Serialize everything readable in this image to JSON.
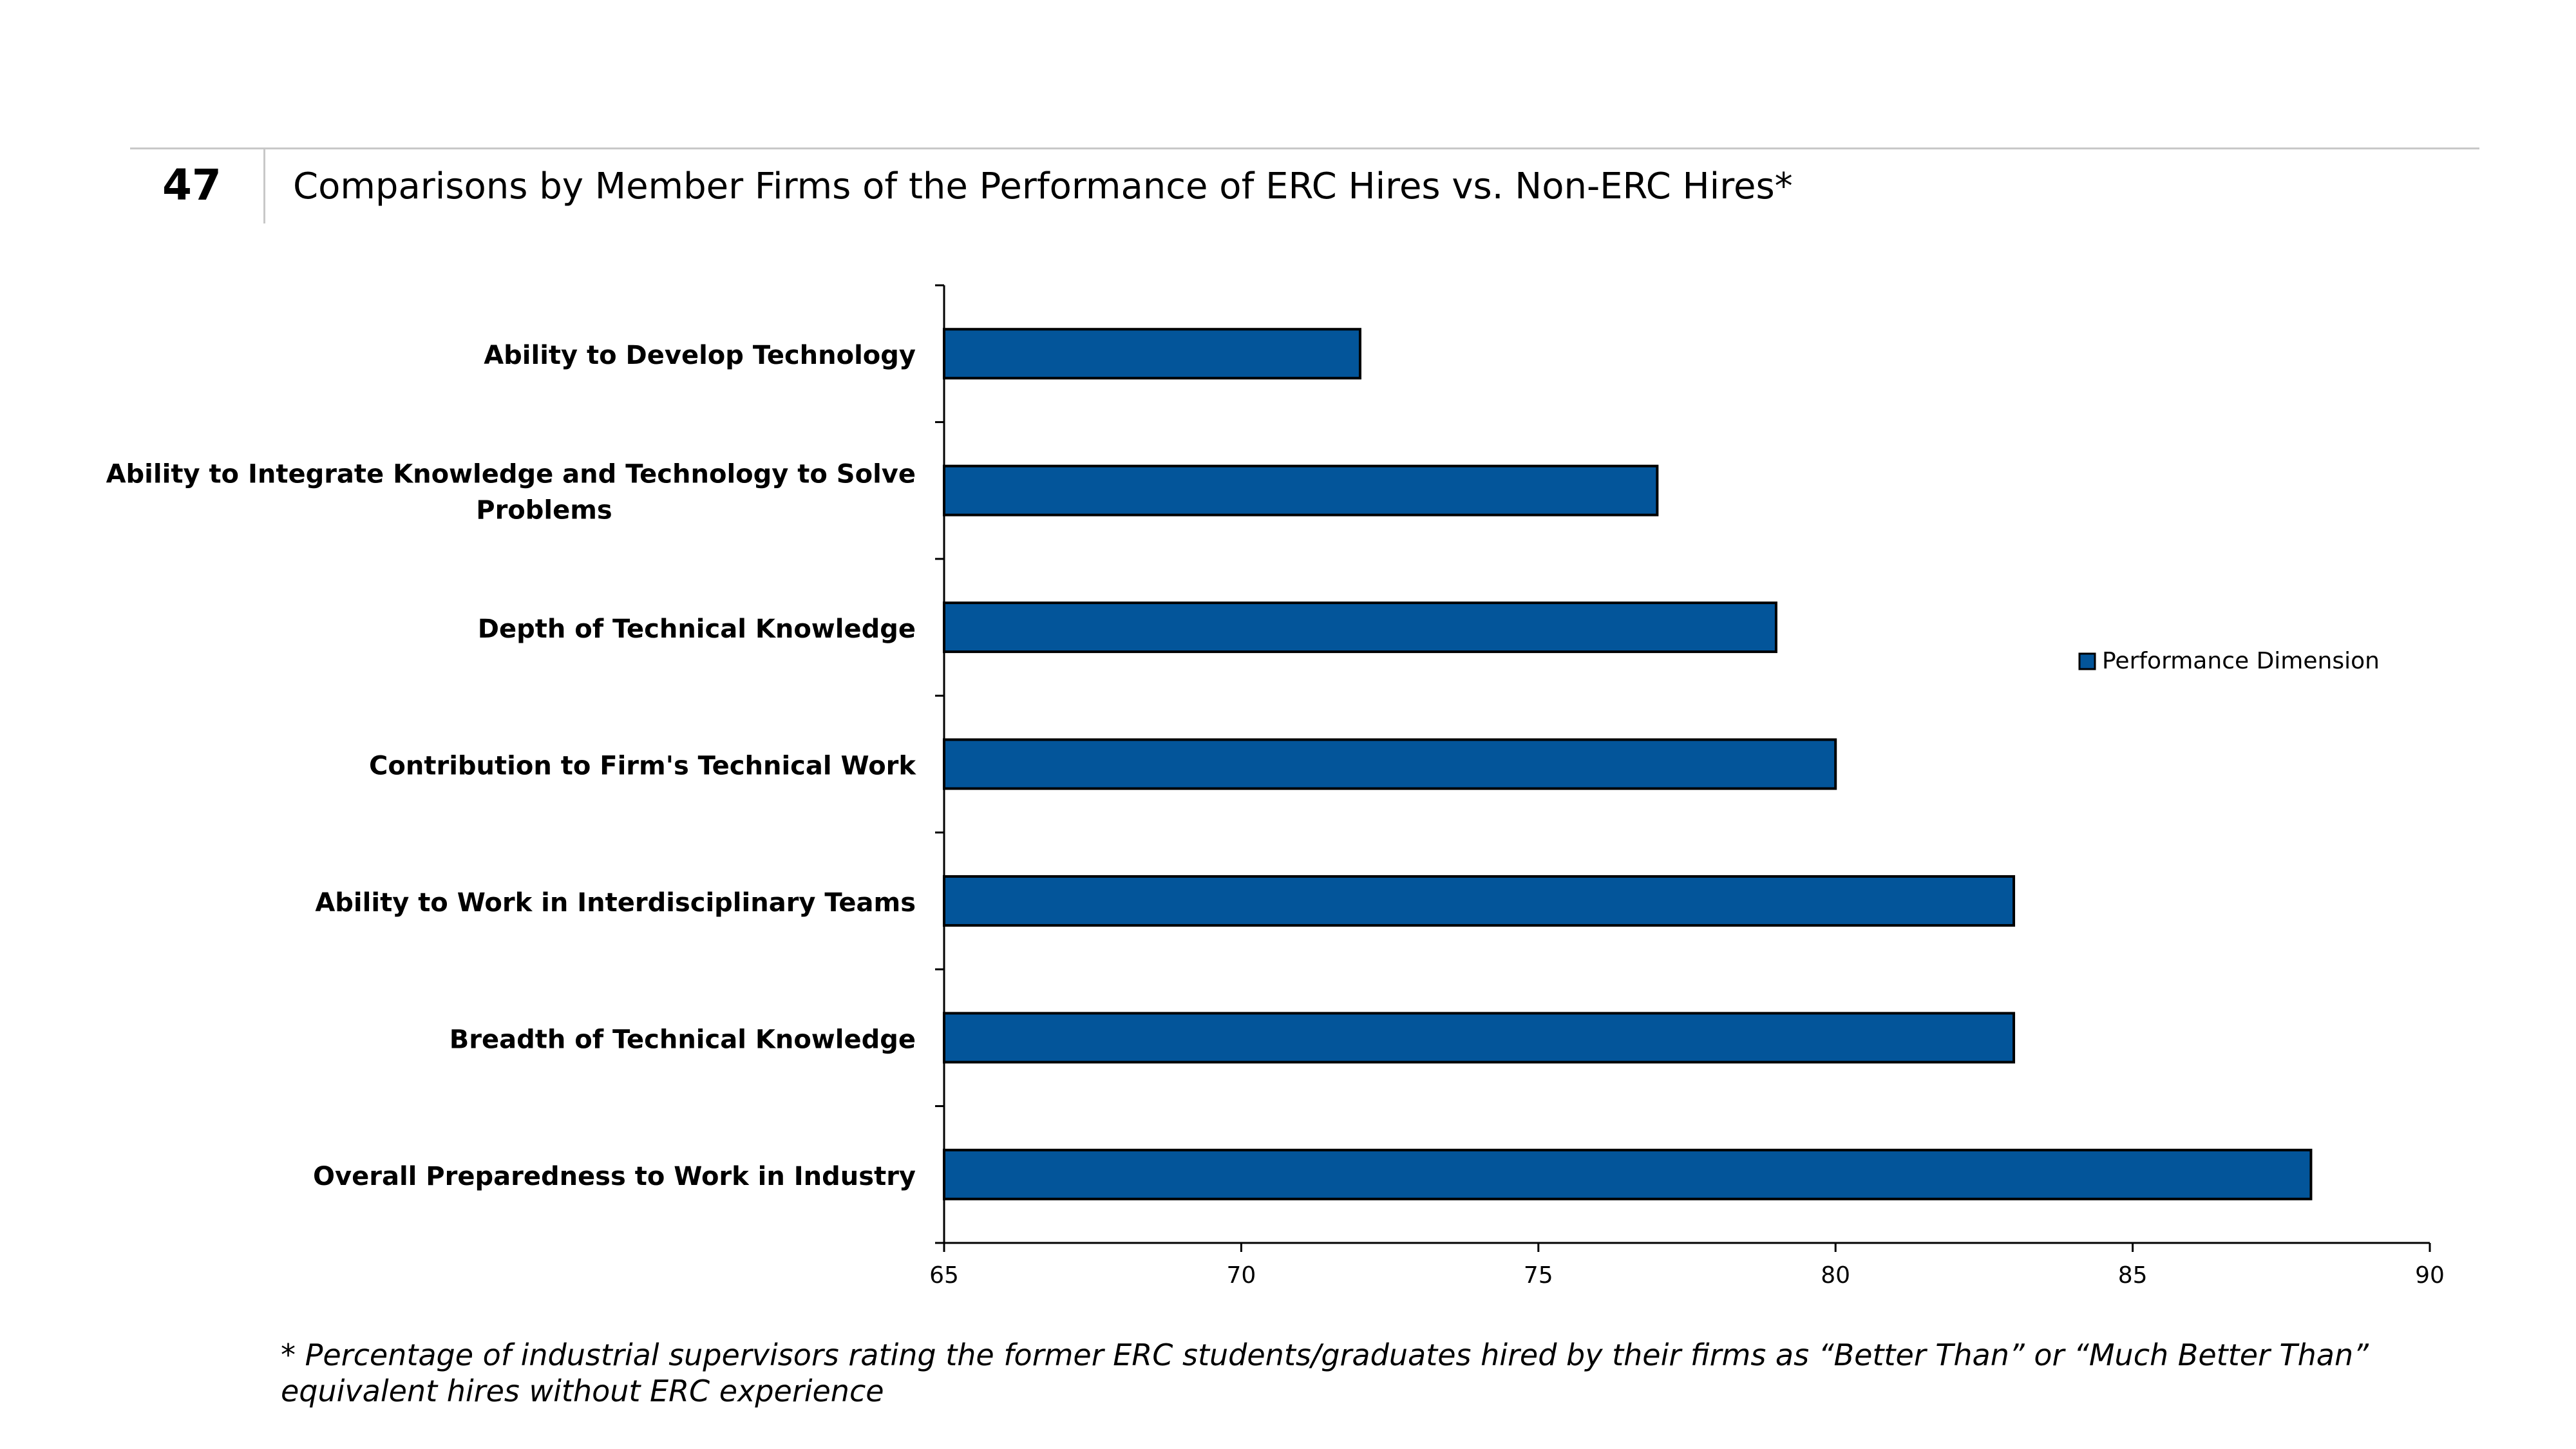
{
  "header": {
    "slide_number": "47",
    "title": "Comparisons by Member Firms of the Performance of ERC Hires vs. Non-ERC Hires*"
  },
  "chart_data": {
    "type": "bar",
    "orientation": "horizontal",
    "title": "",
    "xlabel": "",
    "ylabel": "",
    "xlim": [
      65,
      90
    ],
    "x_ticks": [
      65,
      70,
      75,
      80,
      85,
      90
    ],
    "grid": false,
    "legend_position": "right",
    "categories": [
      [
        "Ability to Develop Technology"
      ],
      [
        "Ability to Integrate Knowledge and Technology to Solve",
        "Problems"
      ],
      [
        "Depth of Technical Knowledge"
      ],
      [
        "Contribution to Firm's Technical Work"
      ],
      [
        "Ability to Work in Interdisciplinary Teams"
      ],
      [
        "Breadth of Technical Knowledge"
      ],
      [
        "Overall Preparedness to Work in Industry"
      ]
    ],
    "series": [
      {
        "name": "Performance Dimension",
        "color": "#03559A",
        "values": [
          72,
          77,
          79,
          80,
          83,
          83,
          88
        ]
      }
    ]
  },
  "footnote": "* Percentage of industrial supervisors rating the former ERC students/graduates hired by their firms as “Better Than” or “Much Better Than” equivalent hires without ERC experience"
}
